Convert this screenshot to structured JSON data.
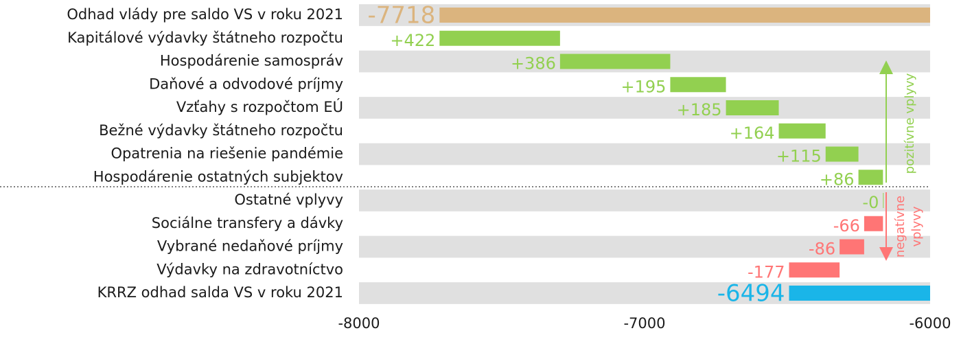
{
  "chart_data": {
    "type": "waterfall",
    "categories": [
      "Odhad vlády pre saldo VS v roku 2021",
      "Kapitálové výdavky štátneho rozpočtu",
      "Hospodárenie samospráv",
      "Daňové a odvodové príjmy",
      "Vzťahy s rozpočtom EÚ",
      "Bežné výdavky štátneho rozpočtu",
      "Opatrenia na riešenie pandémie",
      "Hospodárenie ostatných subjektov",
      "Ostatné vplyvy",
      "Sociálne transfery a dávky",
      "Vybrané nedaňové príjmy",
      "Výdavky na zdravotníctvo",
      "KRRZ odhad salda VS v roku 2021"
    ],
    "values": [
      -7718,
      422,
      386,
      195,
      185,
      164,
      115,
      86,
      0,
      -66,
      -86,
      -177,
      -6494
    ],
    "value_labels": [
      "-7718",
      "+422",
      "+386",
      "+195",
      "+185",
      "+164",
      "+115",
      "+86",
      "-0",
      "-66",
      "-86",
      "-177",
      "-6494"
    ],
    "measure": [
      "absolute",
      "relative",
      "relative",
      "relative",
      "relative",
      "relative",
      "relative",
      "relative",
      "relative",
      "relative",
      "relative",
      "relative",
      "total"
    ],
    "colors": {
      "absolute": "#dbb47e",
      "increase": "#92d050",
      "decrease": "#ff7575",
      "total": "#1ab5e8"
    },
    "xlim": [
      -8000,
      -6000
    ],
    "xticks": [
      -8000,
      -7000,
      -6000
    ],
    "positive_annotation": [
      "pozitívne vplyvy"
    ],
    "negative_annotation": [
      "negatívne",
      "vplyvy"
    ]
  }
}
